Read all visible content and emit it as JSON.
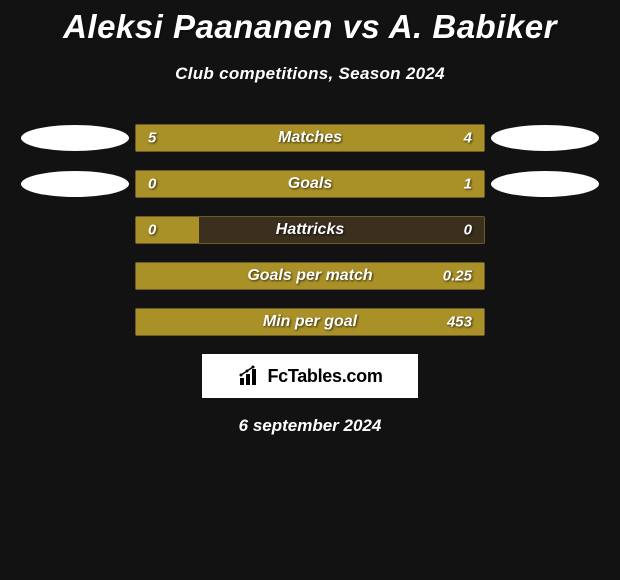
{
  "header": {
    "player1": "Aleksi Paananen",
    "player2": "A. Babiker",
    "title_separator": "vs",
    "subtitle": "Club competitions, Season 2024"
  },
  "colors": {
    "background": "#121212",
    "bar_fill": "#aa9127",
    "bar_bg": "#3b2f1e",
    "bar_border": "#6b5a2a",
    "text": "#ffffff",
    "ellipse": "#ffffff"
  },
  "stats": [
    {
      "label": "Matches",
      "left_value": "5",
      "right_value": "4",
      "left_fill_pct": 50,
      "right_fill_pct": 50,
      "show_left_ellipse": true,
      "show_right_ellipse": true
    },
    {
      "label": "Goals",
      "left_value": "0",
      "right_value": "1",
      "left_fill_pct": 18,
      "right_fill_pct": 82,
      "show_left_ellipse": true,
      "show_right_ellipse": true
    },
    {
      "label": "Hattricks",
      "left_value": "0",
      "right_value": "0",
      "left_fill_pct": 18,
      "right_fill_pct": 0,
      "show_left_ellipse": false,
      "show_right_ellipse": false
    },
    {
      "label": "Goals per match",
      "left_value": "",
      "right_value": "0.25",
      "left_fill_pct": 0,
      "right_fill_pct": 100,
      "show_left_ellipse": false,
      "show_right_ellipse": false
    },
    {
      "label": "Min per goal",
      "left_value": "",
      "right_value": "453",
      "left_fill_pct": 0,
      "right_fill_pct": 100,
      "show_left_ellipse": false,
      "show_right_ellipse": false
    }
  ],
  "branding": {
    "site_name": "FcTables.com"
  },
  "footer": {
    "date": "6 september 2024"
  }
}
